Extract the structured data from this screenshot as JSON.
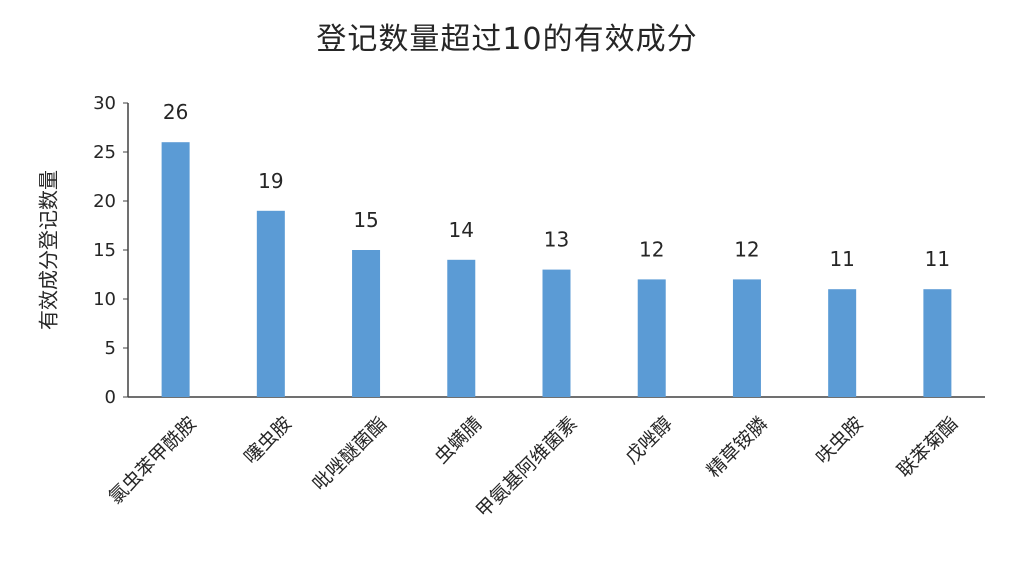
{
  "chart_data": {
    "type": "bar",
    "title": "登记数量超过10的有效成分",
    "xlabel": "",
    "ylabel": "有效成分登记数量",
    "categories": [
      "氯虫苯甲酰胺",
      "噻虫胺",
      "吡唑醚菌酯",
      "虫螨腈",
      "甲氨基阿维菌素",
      "戊唑醇",
      "精草铵膦",
      "呋虫胺",
      "联苯菊酯"
    ],
    "values": [
      26,
      19,
      15,
      14,
      13,
      12,
      12,
      11,
      11
    ],
    "ylim": [
      0,
      30
    ],
    "yticks": [
      0,
      5,
      10,
      15,
      20,
      25,
      30
    ],
    "grid": false,
    "legend": "none",
    "bar_color": "#5B9BD5",
    "data_labels": true
  }
}
